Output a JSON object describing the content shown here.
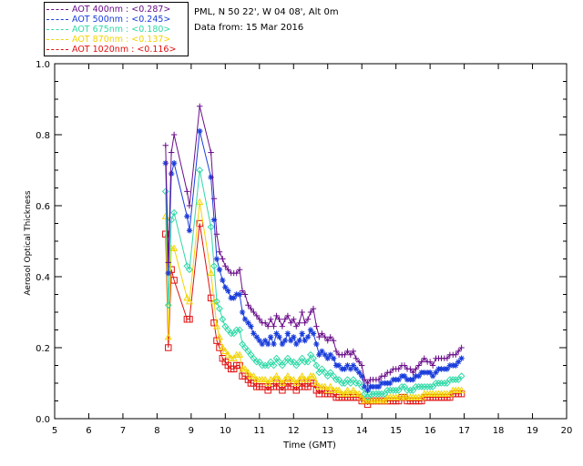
{
  "station": {
    "location": "PML, N 50 22', W 04 08', Alt 0m",
    "date_line": "Data from: 15 Mar 2016"
  },
  "colors": {
    "aot400": "#6a0d8a",
    "aot500": "#1a3ddb",
    "aot675": "#2fd9a6",
    "aot870": "#f2d400",
    "aot1020": "#e01010"
  },
  "legend": [
    {
      "label": "AOT  400nm : <0.287>",
      "color": "#6a0d8a"
    },
    {
      "label": "AOT  500nm : <0.245>",
      "color": "#1a3ddb"
    },
    {
      "label": "AOT  675nm : <0.180>",
      "color": "#2fd9a6"
    },
    {
      "label": "AOT  870nm : <0.137>",
      "color": "#f2d400"
    },
    {
      "label": "AOT 1020nm : <0.116>",
      "color": "#e01010"
    }
  ],
  "chart_data": {
    "type": "line",
    "title": "",
    "xlabel": "Time (GMT)",
    "ylabel": "Aerosol Optical Thickness",
    "xlim": [
      5,
      20
    ],
    "ylim": [
      0,
      1.0
    ],
    "xticks": [
      "5",
      "6",
      "7",
      "8",
      "9",
      "10",
      "11",
      "12",
      "13",
      "14",
      "15",
      "16",
      "17",
      "18",
      "19",
      "20"
    ],
    "yticks": [
      "0.0",
      "0.2",
      "0.4",
      "0.6",
      "0.8",
      "1.0"
    ],
    "grid": false,
    "legend_position": "top-left",
    "x": [
      8.25,
      8.33,
      8.42,
      8.5,
      8.88,
      8.95,
      9.25,
      9.58,
      9.67,
      9.75,
      9.83,
      9.92,
      10.0,
      10.08,
      10.17,
      10.25,
      10.33,
      10.42,
      10.5,
      10.58,
      10.67,
      10.75,
      10.83,
      10.92,
      11.0,
      11.08,
      11.17,
      11.25,
      11.33,
      11.42,
      11.5,
      11.58,
      11.67,
      11.75,
      11.83,
      11.92,
      12.0,
      12.08,
      12.17,
      12.25,
      12.33,
      12.42,
      12.5,
      12.58,
      12.67,
      12.75,
      12.83,
      12.92,
      13.0,
      13.08,
      13.17,
      13.25,
      13.33,
      13.42,
      13.5,
      13.58,
      13.67,
      13.75,
      13.83,
      13.92,
      14.0,
      14.08,
      14.17,
      14.25,
      14.33,
      14.42,
      14.5,
      14.58,
      14.67,
      14.75,
      14.83,
      14.92,
      15.0,
      15.08,
      15.17,
      15.25,
      15.33,
      15.42,
      15.5,
      15.58,
      15.67,
      15.75,
      15.83,
      15.92,
      16.0,
      16.08,
      16.17,
      16.25,
      16.33,
      16.42,
      16.5,
      16.58,
      16.67,
      16.75,
      16.83,
      16.92
    ],
    "series": [
      {
        "name": "AOT 400nm",
        "marker": "plus",
        "color": "#6a0d8a",
        "values": [
          0.77,
          0.44,
          0.75,
          0.8,
          0.64,
          0.6,
          0.88,
          0.75,
          0.62,
          0.52,
          0.47,
          0.45,
          0.43,
          0.42,
          0.41,
          0.41,
          0.41,
          0.42,
          0.36,
          0.35,
          0.32,
          0.31,
          0.3,
          0.29,
          0.28,
          0.27,
          0.27,
          0.26,
          0.28,
          0.26,
          0.29,
          0.28,
          0.26,
          0.28,
          0.29,
          0.27,
          0.28,
          0.26,
          0.27,
          0.3,
          0.27,
          0.28,
          0.3,
          0.31,
          0.26,
          0.23,
          0.24,
          0.23,
          0.22,
          0.23,
          0.22,
          0.19,
          0.18,
          0.18,
          0.18,
          0.19,
          0.18,
          0.19,
          0.17,
          0.16,
          0.15,
          0.11,
          0.1,
          0.11,
          0.11,
          0.11,
          0.11,
          0.12,
          0.12,
          0.13,
          0.13,
          0.14,
          0.14,
          0.14,
          0.15,
          0.15,
          0.14,
          0.14,
          0.13,
          0.14,
          0.15,
          0.16,
          0.17,
          0.16,
          0.16,
          0.15,
          0.17,
          0.17,
          0.17,
          0.17,
          0.17,
          0.18,
          0.18,
          0.18,
          0.19,
          0.2
        ]
      },
      {
        "name": "AOT 500nm",
        "marker": "asterisk",
        "color": "#1a3ddb",
        "values": [
          0.72,
          0.41,
          0.69,
          0.72,
          0.57,
          0.53,
          0.81,
          0.68,
          0.56,
          0.45,
          0.42,
          0.39,
          0.37,
          0.36,
          0.34,
          0.34,
          0.35,
          0.35,
          0.3,
          0.28,
          0.27,
          0.26,
          0.24,
          0.23,
          0.22,
          0.21,
          0.22,
          0.21,
          0.23,
          0.21,
          0.24,
          0.23,
          0.21,
          0.22,
          0.24,
          0.22,
          0.23,
          0.21,
          0.22,
          0.24,
          0.22,
          0.23,
          0.25,
          0.24,
          0.21,
          0.18,
          0.19,
          0.18,
          0.17,
          0.18,
          0.17,
          0.15,
          0.15,
          0.14,
          0.14,
          0.15,
          0.14,
          0.15,
          0.14,
          0.13,
          0.12,
          0.09,
          0.08,
          0.09,
          0.09,
          0.09,
          0.09,
          0.1,
          0.1,
          0.1,
          0.1,
          0.11,
          0.11,
          0.11,
          0.12,
          0.12,
          0.11,
          0.11,
          0.11,
          0.12,
          0.12,
          0.13,
          0.13,
          0.13,
          0.13,
          0.12,
          0.13,
          0.14,
          0.14,
          0.14,
          0.14,
          0.15,
          0.15,
          0.15,
          0.16,
          0.17
        ]
      },
      {
        "name": "AOT 675nm",
        "marker": "diamond",
        "color": "#2fd9a6",
        "values": [
          0.64,
          0.32,
          0.56,
          0.58,
          0.43,
          0.42,
          0.7,
          0.54,
          0.43,
          0.33,
          0.31,
          0.28,
          0.26,
          0.25,
          0.24,
          0.24,
          0.25,
          0.25,
          0.21,
          0.2,
          0.19,
          0.18,
          0.17,
          0.16,
          0.16,
          0.15,
          0.15,
          0.15,
          0.16,
          0.15,
          0.17,
          0.16,
          0.15,
          0.16,
          0.17,
          0.16,
          0.16,
          0.15,
          0.16,
          0.17,
          0.16,
          0.16,
          0.18,
          0.17,
          0.15,
          0.13,
          0.14,
          0.13,
          0.12,
          0.13,
          0.12,
          0.11,
          0.11,
          0.1,
          0.1,
          0.11,
          0.1,
          0.11,
          0.1,
          0.1,
          0.09,
          0.07,
          0.06,
          0.07,
          0.07,
          0.07,
          0.07,
          0.07,
          0.07,
          0.08,
          0.08,
          0.08,
          0.08,
          0.08,
          0.09,
          0.09,
          0.08,
          0.08,
          0.08,
          0.09,
          0.09,
          0.09,
          0.09,
          0.09,
          0.09,
          0.09,
          0.1,
          0.1,
          0.1,
          0.1,
          0.1,
          0.11,
          0.11,
          0.11,
          0.11,
          0.12
        ]
      },
      {
        "name": "AOT 870nm",
        "marker": "triangle",
        "color": "#f2d400",
        "values": [
          0.57,
          0.23,
          0.48,
          0.48,
          0.34,
          0.33,
          0.61,
          0.41,
          0.33,
          0.26,
          0.23,
          0.2,
          0.19,
          0.18,
          0.17,
          0.17,
          0.18,
          0.18,
          0.14,
          0.14,
          0.13,
          0.12,
          0.12,
          0.11,
          0.11,
          0.11,
          0.11,
          0.1,
          0.11,
          0.11,
          0.12,
          0.11,
          0.1,
          0.11,
          0.12,
          0.11,
          0.11,
          0.1,
          0.11,
          0.12,
          0.11,
          0.11,
          0.12,
          0.12,
          0.1,
          0.09,
          0.09,
          0.09,
          0.08,
          0.09,
          0.08,
          0.08,
          0.08,
          0.07,
          0.07,
          0.08,
          0.07,
          0.08,
          0.07,
          0.07,
          0.06,
          0.05,
          0.05,
          0.05,
          0.05,
          0.05,
          0.05,
          0.05,
          0.05,
          0.06,
          0.06,
          0.06,
          0.06,
          0.06,
          0.06,
          0.06,
          0.06,
          0.06,
          0.06,
          0.06,
          0.06,
          0.06,
          0.07,
          0.07,
          0.07,
          0.07,
          0.07,
          0.07,
          0.07,
          0.07,
          0.07,
          0.07,
          0.08,
          0.08,
          0.08,
          0.08
        ]
      },
      {
        "name": "AOT 1020nm",
        "marker": "square",
        "color": "#e01010",
        "values": [
          0.52,
          0.2,
          0.42,
          0.39,
          0.28,
          0.28,
          0.55,
          0.34,
          0.27,
          0.22,
          0.2,
          0.17,
          0.16,
          0.15,
          0.14,
          0.14,
          0.15,
          0.15,
          0.12,
          0.12,
          0.11,
          0.1,
          0.1,
          0.09,
          0.09,
          0.09,
          0.09,
          0.08,
          0.09,
          0.09,
          0.1,
          0.09,
          0.08,
          0.09,
          0.1,
          0.09,
          0.09,
          0.08,
          0.09,
          0.1,
          0.09,
          0.09,
          0.1,
          0.1,
          0.08,
          0.07,
          0.08,
          0.07,
          0.07,
          0.07,
          0.07,
          0.06,
          0.06,
          0.06,
          0.06,
          0.06,
          0.06,
          0.06,
          0.06,
          0.06,
          0.05,
          0.05,
          0.04,
          0.05,
          0.05,
          0.05,
          0.05,
          0.05,
          0.05,
          0.05,
          0.05,
          0.05,
          0.05,
          0.05,
          0.06,
          0.06,
          0.05,
          0.05,
          0.05,
          0.05,
          0.05,
          0.05,
          0.06,
          0.06,
          0.06,
          0.06,
          0.06,
          0.06,
          0.06,
          0.06,
          0.06,
          0.06,
          0.07,
          0.07,
          0.07,
          0.07
        ]
      }
    ]
  }
}
